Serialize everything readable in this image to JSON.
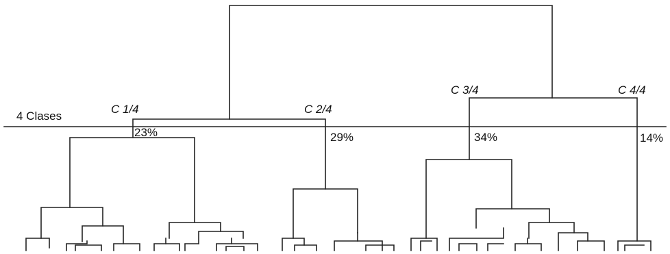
{
  "cut_label": "4 Clases",
  "clusters": [
    {
      "name": "C 1/4",
      "share": "23%"
    },
    {
      "name": "C 2/4",
      "share": "29%"
    },
    {
      "name": "C 3/4",
      "share": "34%"
    },
    {
      "name": "C 4/4",
      "share": "14%"
    }
  ],
  "colors": {
    "line": "#222222",
    "text": "#111111",
    "background": "#ffffff"
  }
}
